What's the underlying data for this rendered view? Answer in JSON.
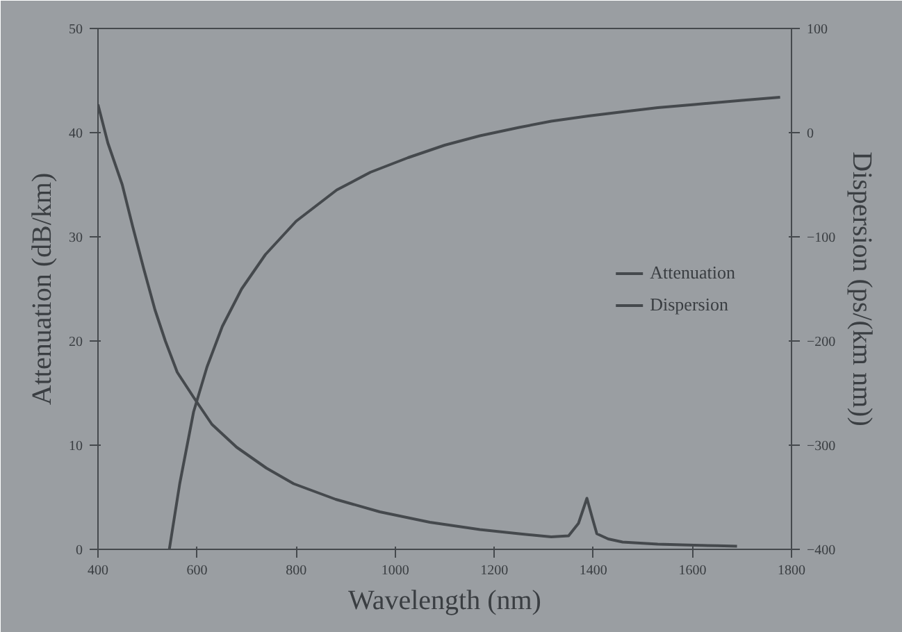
{
  "chart_data": {
    "type": "line",
    "xlabel": "Wavelength (nm)",
    "ylabel": "Attenuation (dB/km)",
    "y2label": "Dispersion (ps/(km nm))",
    "xlim": [
      400,
      1800
    ],
    "xticks": [
      400,
      600,
      800,
      1000,
      1200,
      1400,
      1600,
      1800
    ],
    "ylim": [
      0,
      50
    ],
    "yticks": [
      0,
      10,
      20,
      30,
      40,
      50
    ],
    "y2lim": [
      -400,
      100
    ],
    "y2ticks": [
      -400,
      -300,
      -200,
      -100,
      0,
      100
    ],
    "legend": "right",
    "grid": false,
    "series": [
      {
        "name": "Attenuation",
        "color": "#45494d",
        "x": [
          400,
          420,
          449,
          470,
          492,
          515,
          536,
          560,
          593,
          630,
          680,
          740,
          795,
          880,
          969,
          1070,
          1171,
          1250,
          1315,
          1350,
          1370,
          1387,
          1398,
          1407,
          1430,
          1459,
          1530,
          1604,
          1650,
          1690
        ],
        "values": [
          42.7,
          39,
          35,
          31,
          27,
          23,
          20,
          17,
          14.6,
          12,
          9.8,
          7.8,
          6.3,
          4.8,
          3.6,
          2.6,
          1.9,
          1.5,
          1.2,
          1.3,
          2.5,
          4.9,
          3,
          1.5,
          1,
          0.7,
          0.5,
          0.4,
          0.35,
          0.3
        ]
      },
      {
        "name": "Dispersion",
        "color": "#45494d",
        "axis": "y2",
        "x": [
          544,
          565,
          593,
          620,
          651,
          690,
          738,
          800,
          882,
          950,
          1026,
          1100,
          1171,
          1250,
          1315,
          1390,
          1459,
          1530,
          1604,
          1700,
          1777
        ],
        "values": [
          -400,
          -337,
          -268,
          -225,
          -186,
          -150,
          -117,
          -85,
          -55,
          -38,
          -24,
          -12,
          -3,
          5,
          11,
          16,
          20,
          24,
          27,
          31,
          34
        ]
      }
    ]
  }
}
